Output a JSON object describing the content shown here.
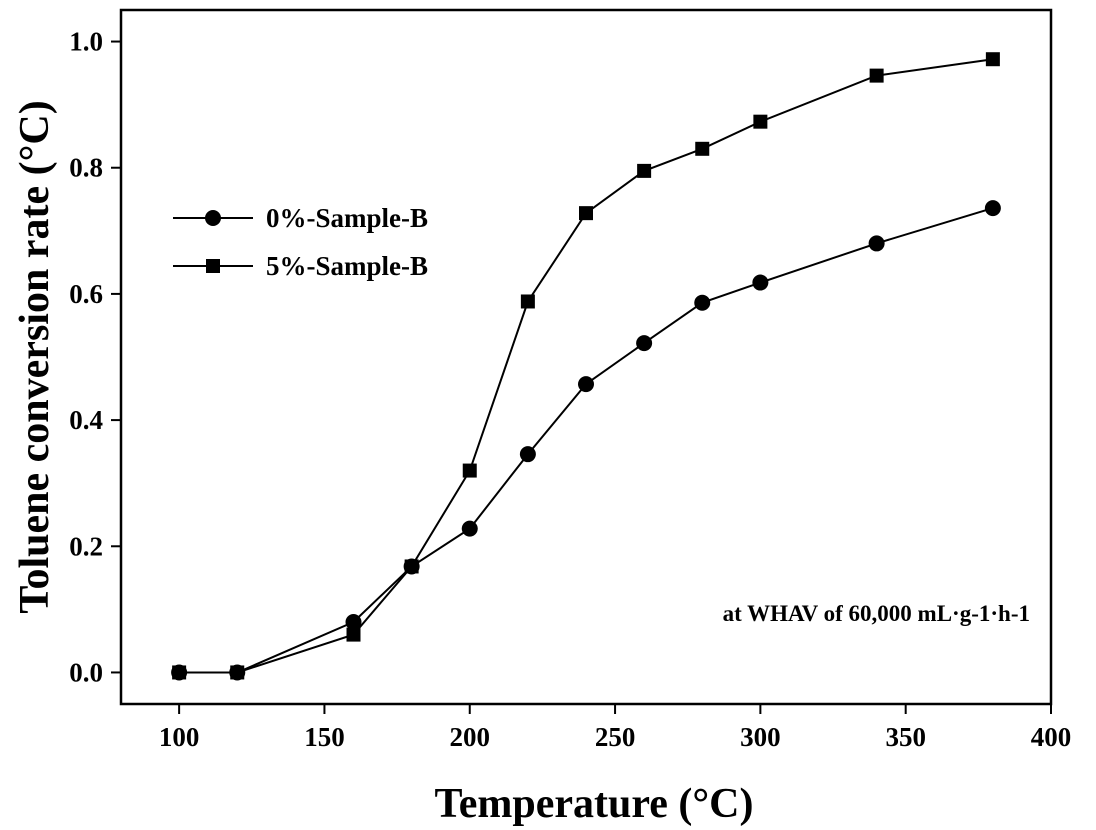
{
  "chart_data": {
    "type": "line",
    "xlabel": "Temperature (°C)",
    "ylabel": "Toluene conversion rate (°C)",
    "xlim": [
      80,
      400
    ],
    "ylim": [
      -0.05,
      1.05
    ],
    "x_ticks": [
      "100",
      "150",
      "200",
      "250",
      "300",
      "350",
      "400"
    ],
    "y_ticks": [
      "0.0",
      "0.2",
      "0.4",
      "0.6",
      "0.8",
      "1.0"
    ],
    "legend_position": "upper-left",
    "grid": false,
    "annotation": "at WHAV of 60,000 mL·g-1·h-1",
    "series": [
      {
        "name": "0%-Sample-B",
        "marker": "circle",
        "x": [
          100,
          120,
          160,
          180,
          200,
          220,
          240,
          260,
          280,
          300,
          340,
          380
        ],
        "y": [
          0.0,
          0.0,
          0.08,
          0.168,
          0.228,
          0.346,
          0.457,
          0.522,
          0.586,
          0.618,
          0.68,
          0.736
        ]
      },
      {
        "name": "5%-Sample-B",
        "marker": "square",
        "x": [
          100,
          120,
          160,
          180,
          200,
          220,
          240,
          260,
          280,
          300,
          340,
          380
        ],
        "y": [
          0.0,
          0.0,
          0.06,
          0.168,
          0.32,
          0.588,
          0.728,
          0.795,
          0.83,
          0.873,
          0.946,
          0.972
        ]
      }
    ]
  }
}
